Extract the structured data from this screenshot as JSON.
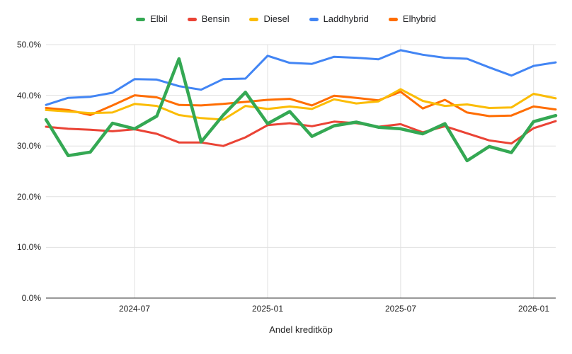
{
  "chart_data": {
    "type": "line",
    "title": "",
    "xlabel": "Andel kreditköp",
    "ylabel": "",
    "grid": true,
    "legend_position": "top",
    "ylim": [
      0,
      50
    ],
    "y_ticks": [
      0,
      10,
      20,
      30,
      40,
      50
    ],
    "y_tick_labels": [
      "0.0%",
      "10.0%",
      "20.0%",
      "30.0%",
      "40.0%",
      "50.0%"
    ],
    "x": [
      "2024-03",
      "2024-04",
      "2024-05",
      "2024-06",
      "2024-07",
      "2024-08",
      "2024-09",
      "2024-10",
      "2024-11",
      "2024-12",
      "2025-01",
      "2025-02",
      "2025-03",
      "2025-04",
      "2025-05",
      "2025-06",
      "2025-07",
      "2025-08",
      "2025-09",
      "2025-10",
      "2025-11",
      "2025-12",
      "2026-01",
      "2026-02"
    ],
    "x_tick_indices": [
      4,
      10,
      16,
      22
    ],
    "x_tick_labels": [
      "2024-07",
      "2025-01",
      "2025-07",
      "2026-01"
    ],
    "series": [
      {
        "name": "Elbil",
        "color": "#34a853",
        "stroke_width": 4.5,
        "values": [
          35.2,
          28.1,
          28.8,
          34.5,
          33.4,
          35.9,
          47.2,
          30.8,
          36.1,
          40.6,
          34.4,
          36.8,
          31.9,
          34.0,
          34.7,
          33.7,
          33.4,
          32.4,
          34.4,
          27.1,
          29.9,
          28.7,
          34.8,
          36.0
        ]
      },
      {
        "name": "Bensin",
        "color": "#ea4335",
        "stroke_width": 3,
        "values": [
          33.8,
          33.4,
          33.2,
          32.9,
          33.3,
          32.4,
          30.7,
          30.7,
          30.0,
          31.7,
          34.1,
          34.5,
          33.9,
          34.8,
          34.5,
          33.8,
          34.3,
          32.7,
          33.9,
          32.5,
          31.1,
          30.5,
          33.5,
          34.9
        ]
      },
      {
        "name": "Diesel",
        "color": "#fbbc04",
        "stroke_width": 3,
        "values": [
          37.1,
          36.8,
          36.5,
          36.6,
          38.3,
          37.9,
          36.1,
          35.5,
          35.2,
          37.9,
          37.3,
          37.8,
          37.3,
          39.2,
          38.4,
          38.8,
          41.2,
          38.9,
          37.9,
          38.2,
          37.5,
          37.6,
          40.3,
          39.4
        ]
      },
      {
        "name": "Laddhybrid",
        "color": "#4285f4",
        "stroke_width": 3,
        "values": [
          38.1,
          39.5,
          39.7,
          40.5,
          43.2,
          43.1,
          41.8,
          41.1,
          43.2,
          43.3,
          47.8,
          46.4,
          46.2,
          47.6,
          47.4,
          47.1,
          48.9,
          48.0,
          47.4,
          47.2,
          45.5,
          43.9,
          45.8,
          46.5
        ]
      },
      {
        "name": "Elhybrid",
        "color": "#ff6d01",
        "stroke_width": 3,
        "values": [
          37.5,
          37.1,
          36.1,
          38.0,
          40.0,
          39.6,
          38.1,
          38.0,
          38.3,
          38.7,
          39.1,
          39.3,
          38.0,
          39.9,
          39.5,
          39.0,
          40.7,
          37.4,
          39.1,
          36.6,
          35.9,
          36.0,
          37.8,
          37.2
        ]
      }
    ],
    "colors": {
      "gridline": "#e0e0e0",
      "axis_line": "#333333",
      "tick_label": "#222222"
    }
  }
}
